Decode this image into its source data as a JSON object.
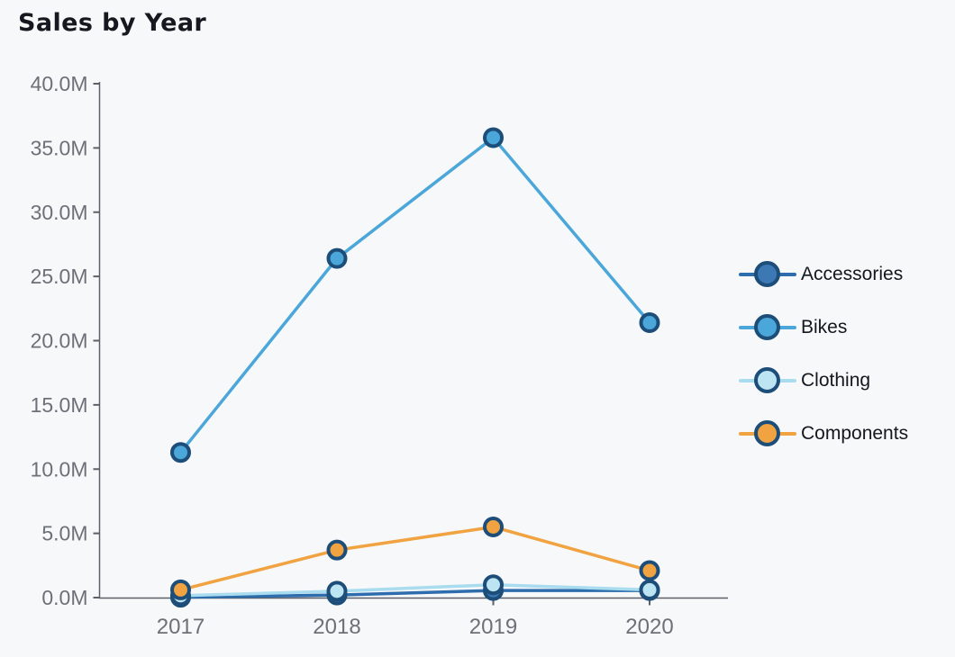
{
  "title": "Sales by Year",
  "colors": {
    "background": "#F7F8FA",
    "axis": "#5C6068",
    "tick_label": "#6C7077",
    "title_text": "#15181F",
    "legend_text": "#14171D",
    "marker_ring": "#1D4E79"
  },
  "chart_data": {
    "type": "line",
    "title": "Sales by Year",
    "xlabel": "",
    "ylabel": "",
    "x_categories": [
      "2017",
      "2018",
      "2019",
      "2020"
    ],
    "y_ticks": [
      "0.0M",
      "5.0M",
      "10.0M",
      "15.0M",
      "20.0M",
      "25.0M",
      "30.0M",
      "35.0M",
      "40.0M"
    ],
    "ylim": [
      0,
      40
    ],
    "y_unit": "M",
    "grid": false,
    "legend_position": "right",
    "marker_ring_color": "#1D4E79",
    "series": [
      {
        "name": "Accessories",
        "line_color": "#2E6DAD",
        "fill_color": "#3C78B4",
        "values": [
          0.03,
          0.2,
          0.55,
          0.55
        ]
      },
      {
        "name": "Bikes",
        "line_color": "#4BA7D9",
        "fill_color": "#4BA7D9",
        "values": [
          11.3,
          26.4,
          35.8,
          21.4
        ]
      },
      {
        "name": "Clothing",
        "line_color": "#A9DCEE",
        "fill_color": "#BCE4F2",
        "values": [
          0.15,
          0.5,
          1.0,
          0.6
        ]
      },
      {
        "name": "Components",
        "line_color": "#F0A340",
        "fill_color": "#F0A340",
        "values": [
          0.6,
          3.7,
          5.5,
          2.1
        ]
      }
    ]
  }
}
